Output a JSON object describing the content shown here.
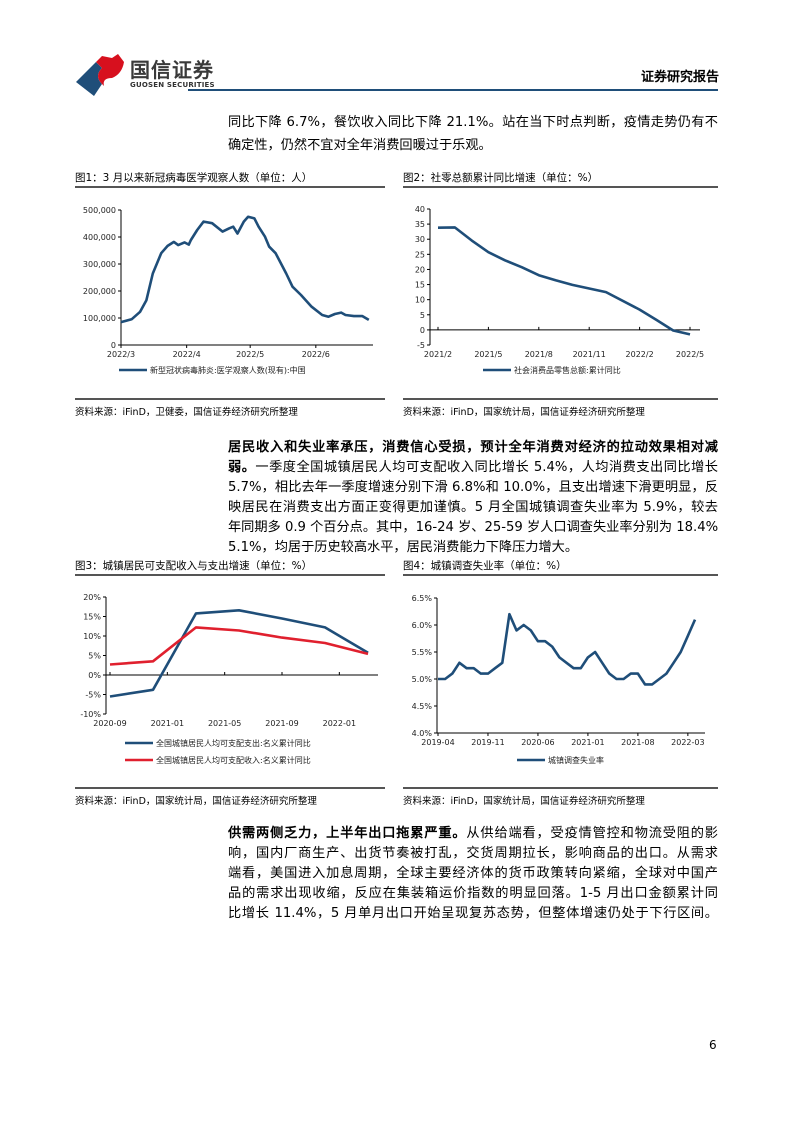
{
  "header": {
    "brand_cn": "国信证券",
    "brand_en": "GUOSEN SECURITIES",
    "report_type": "证券研究报告",
    "colors": {
      "red": "#d7101e",
      "blue": "#1f4e79"
    }
  },
  "paragraph1": {
    "lines": [
      "同比下降 6.7%，餐饮收入同比下降 21.1%。站在当下时点判断，疫情走势仍有不",
      "确定性，仍然不宜对全年消费回暖过于乐观。"
    ]
  },
  "paragraph2": {
    "bold_line1": "居民收入和失业率承压，消费信心受损，预计全年消费对经济的拉动效果相对减",
    "bold_line2": "弱。",
    "line2_rest": "一季度全国城镇居民人均可支配收入同比增长 5.4%，人均消费支出同比增长",
    "lines": [
      "5.7%，相比去年一季度增速分别下滑 6.8%和 10.0%，且支出增速下滑更明显，反",
      "映居民在消费支出方面正变得更加谨慎。5 月全国城镇调查失业率为 5.9%，较去",
      "年同期多 0.9 个百分点。其中，16-24 岁、25-59 岁人口调查失业率分别为 18.4%、",
      "5.1%，均居于历史较高水平，居民消费能力下降压力增大。"
    ]
  },
  "paragraph3": {
    "bold_lead": "供需两侧乏力，上半年出口拖累严重。",
    "line1_rest": "从供给端看，受疫情管控和物流受阻的影",
    "lines": [
      "响，国内厂商生产、出货节奏被打乱，交货周期拉长，影响商品的出口。从需求",
      "端看，美国进入加息周期，全球主要经济体的货币政策转向紧缩，全球对中国产",
      "品的需求出现收缩，反应在集装箱运价指数的明显回落。1-5 月出口金额累计同",
      "比增长 11.4%，5 月单月出口开始呈现复苏态势，但整体增速仍处于下行区间。"
    ]
  },
  "figures": [
    {
      "title": "图1：3 月以来新冠病毒医学观察人数（单位：人）",
      "source": "资料来源：iFinD，卫健委，国信证券经济研究所整理"
    },
    {
      "title": "图2：社零总额累计同比增速（单位：%）",
      "source": "资料来源：iFinD，国家统计局，国信证券经济研究所整理"
    },
    {
      "title": "图3：城镇居民可支配收入与支出增速（单位：%）",
      "source": "资料来源：iFinD，国家统计局，国信证券经济研究所整理"
    },
    {
      "title": "图4：城镇调查失业率（单位：%）",
      "source": "资料来源：iFinD，国家统计局，国信证券经济研究所整理"
    }
  ],
  "chart_data": [
    {
      "type": "line",
      "title": "图1：3 月以来新冠病毒医学观察人数（单位：人）",
      "x_unit": "days since 2022-03-01",
      "xlim": [
        0,
        119
      ],
      "x_ticks": [
        {
          "x": 0,
          "label": "2022/3"
        },
        {
          "x": 31,
          "label": "2022/4"
        },
        {
          "x": 61,
          "label": "2022/5"
        },
        {
          "x": 92,
          "label": "2022/6"
        }
      ],
      "ylim": [
        0,
        500000
      ],
      "y_ticks": [
        {
          "v": 0,
          "label": "0"
        },
        {
          "v": 100000,
          "label": "100,000"
        },
        {
          "v": 200000,
          "label": "200,000"
        },
        {
          "v": 300000,
          "label": "300,000"
        },
        {
          "v": 400000,
          "label": "400,000"
        },
        {
          "v": 500000,
          "label": "500,000"
        }
      ],
      "series": [
        {
          "name": "新型冠状病毒肺炎:医学观察人数(现有):中国",
          "color": "#1f4e79",
          "x": [
            0,
            5,
            9,
            12,
            15,
            19,
            22,
            25,
            27,
            30,
            32,
            33,
            36,
            39,
            43,
            48,
            51,
            53,
            55,
            58,
            60,
            63,
            65,
            68,
            70,
            73,
            78,
            81,
            85,
            90,
            95,
            98,
            101,
            104,
            106,
            110,
            114,
            117
          ],
          "values": [
            85000,
            95000,
            123000,
            166000,
            265000,
            340000,
            367000,
            382000,
            370000,
            380000,
            372000,
            389000,
            426000,
            457000,
            451000,
            420000,
            432000,
            438000,
            413000,
            457000,
            475000,
            469000,
            438000,
            401000,
            364000,
            340000,
            265000,
            216000,
            185000,
            142000,
            111000,
            105000,
            115000,
            120000,
            111000,
            107000,
            107000,
            93000
          ]
        }
      ],
      "legend": "bottom"
    },
    {
      "type": "line",
      "title": "图2：社零总额累计同比增速（单位：%）",
      "x_unit": "months since 2021-02",
      "xlim": [
        0,
        15
      ],
      "x_ticks": [
        {
          "x": 0,
          "label": "2021/2"
        },
        {
          "x": 3,
          "label": "2021/5"
        },
        {
          "x": 6,
          "label": "2021/8"
        },
        {
          "x": 9,
          "label": "2021/11"
        },
        {
          "x": 12,
          "label": "2022/2"
        },
        {
          "x": 15,
          "label": "2022/5"
        }
      ],
      "ylim": [
        -5,
        40
      ],
      "y_ticks": [
        {
          "v": -5,
          "label": "-5"
        },
        {
          "v": 0,
          "label": "0"
        },
        {
          "v": 5,
          "label": "5"
        },
        {
          "v": 10,
          "label": "10"
        },
        {
          "v": 15,
          "label": "15"
        },
        {
          "v": 20,
          "label": "20"
        },
        {
          "v": 25,
          "label": "25"
        },
        {
          "v": 30,
          "label": "30"
        },
        {
          "v": 35,
          "label": "35"
        },
        {
          "v": 40,
          "label": "40"
        }
      ],
      "series": [
        {
          "name": "社会消费品零售总额:累计同比",
          "color": "#1f4e79",
          "x": [
            0,
            1,
            2,
            3,
            4,
            5,
            6,
            7,
            8,
            9,
            10,
            12,
            13,
            14,
            15
          ],
          "values": [
            33.8,
            33.9,
            29.6,
            25.7,
            23.0,
            20.7,
            18.1,
            16.4,
            14.9,
            13.7,
            12.5,
            6.7,
            3.3,
            -0.2,
            -1.5
          ]
        }
      ],
      "legend": "bottom"
    },
    {
      "type": "line",
      "title": "图3：城镇居民可支配收入与支出增速（单位：%）",
      "x_unit": "months since 2020-09",
      "xlim": [
        0,
        18
      ],
      "x_ticks": [
        {
          "x": 0,
          "label": "2020-09"
        },
        {
          "x": 4,
          "label": "2021-01"
        },
        {
          "x": 8,
          "label": "2021-05"
        },
        {
          "x": 12,
          "label": "2021-09"
        },
        {
          "x": 16,
          "label": "2022-01"
        }
      ],
      "ylim": [
        -10,
        20
      ],
      "y_ticks": [
        {
          "v": -10,
          "label": "-10%"
        },
        {
          "v": -5,
          "label": "-5%"
        },
        {
          "v": 0,
          "label": "0%"
        },
        {
          "v": 5,
          "label": "5%"
        },
        {
          "v": 10,
          "label": "10%"
        },
        {
          "v": 15,
          "label": "15%"
        },
        {
          "v": 20,
          "label": "20%"
        }
      ],
      "series": [
        {
          "name": "全国城镇居民人均可支配支出:名义累计同比",
          "color": "#1f4e79",
          "x": [
            0,
            3,
            6,
            9,
            12,
            15,
            18
          ],
          "values": [
            -5.5,
            -3.8,
            15.8,
            16.6,
            14.5,
            12.2,
            5.7
          ]
        },
        {
          "name": "全国城镇居民人均可支配收入:名义累计同比",
          "color": "#e0202e",
          "x": [
            0,
            3,
            6,
            9,
            12,
            15,
            18
          ],
          "values": [
            2.7,
            3.5,
            12.2,
            11.4,
            9.6,
            8.2,
            5.4
          ]
        }
      ],
      "legend": "bottom"
    },
    {
      "type": "line",
      "title": "图4：城镇调查失业率（单位：%）",
      "x_unit": "months since 2019-04",
      "xlim": [
        0,
        36
      ],
      "x_ticks": [
        {
          "x": 0,
          "label": "2019-04"
        },
        {
          "x": 7,
          "label": "2019-11"
        },
        {
          "x": 14,
          "label": "2020-06"
        },
        {
          "x": 21,
          "label": "2021-01"
        },
        {
          "x": 28,
          "label": "2021-08"
        },
        {
          "x": 35,
          "label": "2022-03"
        }
      ],
      "ylim": [
        4.0,
        6.5
      ],
      "y_ticks": [
        {
          "v": 4.0,
          "label": "4.0%"
        },
        {
          "v": 4.5,
          "label": "4.5%"
        },
        {
          "v": 5.0,
          "label": "5.0%"
        },
        {
          "v": 5.5,
          "label": "5.5%"
        },
        {
          "v": 6.0,
          "label": "6.0%"
        },
        {
          "v": 6.5,
          "label": "6.5%"
        }
      ],
      "series": [
        {
          "name": "城镇调查失业率",
          "color": "#1f4e79",
          "x": [
            0,
            1,
            2,
            3,
            4,
            5,
            6,
            7,
            8,
            9,
            10,
            11,
            12,
            13,
            14,
            15,
            16,
            17,
            18,
            19,
            20,
            21,
            22,
            23,
            24,
            25,
            26,
            27,
            28,
            29,
            30,
            31,
            32,
            33,
            34,
            35,
            36
          ],
          "values": [
            5.0,
            5.0,
            5.1,
            5.3,
            5.2,
            5.2,
            5.1,
            5.1,
            5.2,
            5.3,
            6.2,
            5.9,
            6.0,
            5.9,
            5.7,
            5.7,
            5.6,
            5.4,
            5.3,
            5.2,
            5.2,
            5.4,
            5.5,
            5.3,
            5.1,
            5.0,
            5.0,
            5.1,
            5.1,
            4.9,
            4.9,
            5.0,
            5.1,
            5.3,
            5.5,
            5.8,
            6.1
          ]
        }
      ],
      "legend": "bottom"
    }
  ],
  "page_number": "6"
}
